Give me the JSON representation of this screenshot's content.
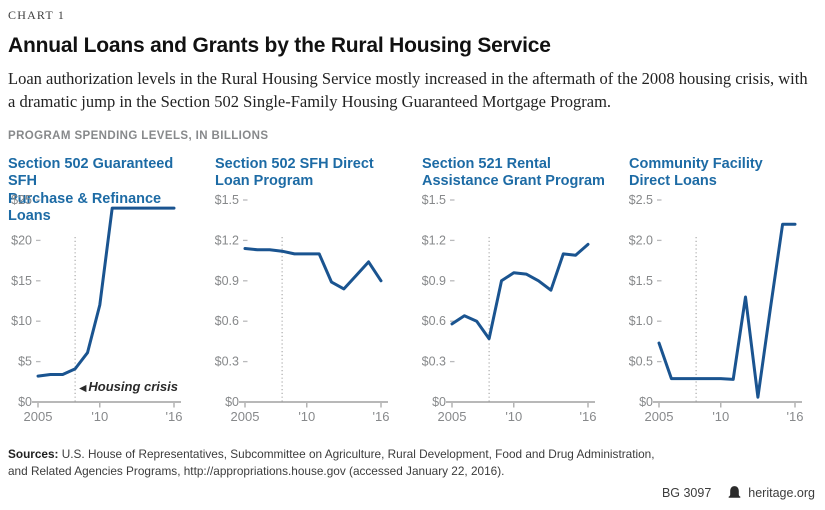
{
  "header": {
    "kicker": "CHART 1",
    "title": "Annual Loans and Grants by the Rural Housing Service",
    "subtitle": "Loan authorization levels in the Rural Housing Service mostly increased in the aftermath of the 2008 housing crisis, with a dramatic jump in the Section 502 Single-Family Housing Guaranteed Mortgage Program.",
    "section_label": "PROGRAM SPENDING LEVELS, IN BILLIONS"
  },
  "colors": {
    "line": "#1a5490",
    "chart_title": "#1d6ba5",
    "axis_text": "#87898b",
    "baseline": "#a0a0a0",
    "tick": "#a0a0a0",
    "tick_dash": "#b9babc",
    "vline": "#9b9b9b",
    "annotation": "#2b2b2b"
  },
  "chart_data": [
    {
      "type": "line",
      "title_line1": "Section 502 Guaranteed SFH",
      "title_line2": "Purchase & Refinance Loans",
      "x": [
        2005,
        2006,
        2007,
        2008,
        2009,
        2010,
        2011,
        2012,
        2013,
        2014,
        2015,
        2016
      ],
      "values": [
        3.2,
        3.4,
        3.4,
        4.1,
        6.1,
        12.0,
        24.0,
        24.0,
        24.0,
        24.0,
        24.0,
        24.0
      ],
      "ylim": [
        0,
        25
      ],
      "yticks": [
        {
          "v": 0,
          "label": "$0"
        },
        {
          "v": 5,
          "label": "$5"
        },
        {
          "v": 10,
          "label": "$10"
        },
        {
          "v": 15,
          "label": "$15"
        },
        {
          "v": 20,
          "label": "$20"
        },
        {
          "v": 25,
          "label": "$25"
        }
      ],
      "xticks": [
        {
          "v": 2005,
          "label": "2005"
        },
        {
          "v": 2010,
          "label": "'10"
        },
        {
          "v": 2016,
          "label": "'16"
        }
      ],
      "vline": 2008,
      "annotation_marker": "◀",
      "annotation_label": "Housing crisis"
    },
    {
      "type": "line",
      "title_line1": "Section 502 SFH Direct",
      "title_line2": "Loan Program",
      "x": [
        2005,
        2006,
        2007,
        2008,
        2009,
        2010,
        2011,
        2012,
        2013,
        2014,
        2015,
        2016
      ],
      "values": [
        1.14,
        1.13,
        1.13,
        1.12,
        1.1,
        1.1,
        1.1,
        0.89,
        0.84,
        0.94,
        1.04,
        0.9
      ],
      "ylim": [
        0,
        1.5
      ],
      "yticks": [
        {
          "v": 0,
          "label": "$0"
        },
        {
          "v": 0.3,
          "label": "$0.3"
        },
        {
          "v": 0.6,
          "label": "$0.6"
        },
        {
          "v": 0.9,
          "label": "$0.9"
        },
        {
          "v": 1.2,
          "label": "$1.2"
        },
        {
          "v": 1.5,
          "label": "$1.5"
        }
      ],
      "xticks": [
        {
          "v": 2005,
          "label": "2005"
        },
        {
          "v": 2010,
          "label": "'10"
        },
        {
          "v": 2016,
          "label": "'16"
        }
      ],
      "vline": 2008
    },
    {
      "type": "line",
      "title_line1": "Section 521 Rental",
      "title_line2": "Assistance Grant Program",
      "x": [
        2005,
        2006,
        2007,
        2008,
        2009,
        2010,
        2011,
        2012,
        2013,
        2014,
        2015,
        2016
      ],
      "values": [
        0.58,
        0.64,
        0.6,
        0.47,
        0.9,
        0.96,
        0.95,
        0.9,
        0.83,
        1.1,
        1.09,
        1.17
      ],
      "ylim": [
        0,
        1.5
      ],
      "yticks": [
        {
          "v": 0,
          "label": "$0"
        },
        {
          "v": 0.3,
          "label": "$0.3"
        },
        {
          "v": 0.6,
          "label": "$0.6"
        },
        {
          "v": 0.9,
          "label": "$0.9"
        },
        {
          "v": 1.2,
          "label": "$1.2"
        },
        {
          "v": 1.5,
          "label": "$1.5"
        }
      ],
      "xticks": [
        {
          "v": 2005,
          "label": "2005"
        },
        {
          "v": 2010,
          "label": "'10"
        },
        {
          "v": 2016,
          "label": "'16"
        }
      ],
      "vline": 2008
    },
    {
      "type": "line",
      "title_line1": "Community Facility",
      "title_line2": "Direct Loans",
      "x": [
        2005,
        2006,
        2007,
        2008,
        2009,
        2010,
        2011,
        2012,
        2013,
        2014,
        2015,
        2016
      ],
      "values": [
        0.73,
        0.29,
        0.29,
        0.29,
        0.29,
        0.29,
        0.28,
        1.3,
        0.06,
        1.15,
        2.2,
        2.2
      ],
      "ylim": [
        0,
        2.5
      ],
      "yticks": [
        {
          "v": 0,
          "label": "$0"
        },
        {
          "v": 0.5,
          "label": "$0.5"
        },
        {
          "v": 1.0,
          "label": "$1.0"
        },
        {
          "v": 1.5,
          "label": "$1.5"
        },
        {
          "v": 2.0,
          "label": "$2.0"
        },
        {
          "v": 2.5,
          "label": "$2.5"
        }
      ],
      "xticks": [
        {
          "v": 2005,
          "label": "2005"
        },
        {
          "v": 2010,
          "label": "'10"
        },
        {
          "v": 2016,
          "label": "'16"
        }
      ],
      "vline": 2008
    }
  ],
  "footer": {
    "sources_label": "Sources:",
    "sources_text": " U.S. House of Representatives, Subcommittee on Agriculture, Rural Development, Food and Drug Administration, and Related Agencies Programs, http://appropriations.house.gov (accessed January 22, 2016).",
    "report_id": "BG 3097",
    "site": "heritage.org"
  }
}
